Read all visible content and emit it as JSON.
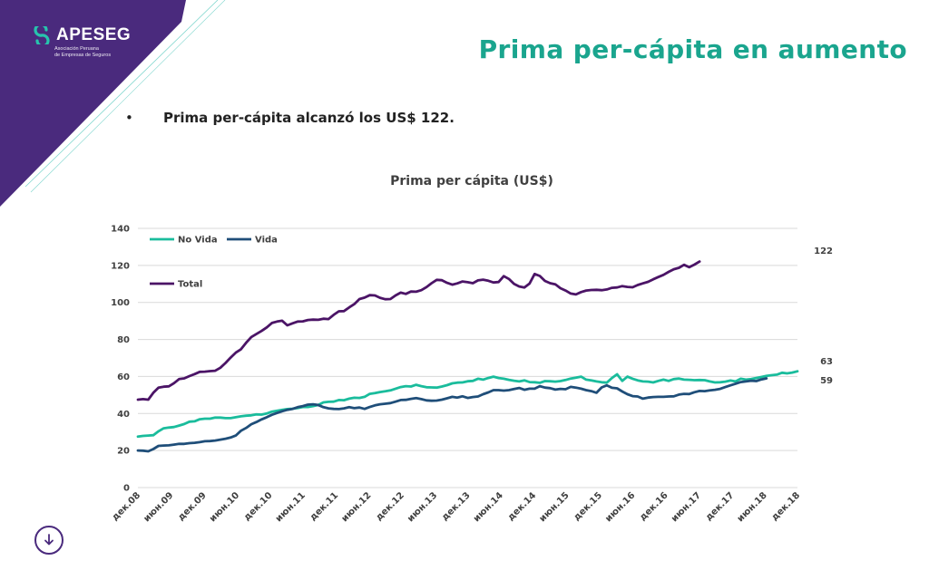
{
  "brand": {
    "name": "APESEG",
    "tagline_1": "Asociación Peruana",
    "tagline_2": "de Empresas de Seguros"
  },
  "slide": {
    "title": "Prima per-cápita en aumento",
    "bullet_symbol": "•",
    "bullet_text": "Prima per-cápita alcanzó los US$ 122."
  },
  "colors": {
    "accent_green": "#1aa58e",
    "purple": "#4b1466",
    "navy": "#1f4e79",
    "no_vida": "#1abc9c",
    "corner_purple": "#4a2a7d"
  },
  "icons": {
    "scroll_down": "arrow-down-circle-icon"
  },
  "chart_data": {
    "type": "line",
    "title": "Prima per cápita (US$)",
    "x_ticks": [
      "дек.08",
      "июн.09",
      "дек.09",
      "июн.10",
      "дек.10",
      "июн.11",
      "дек.11",
      "июн.12",
      "дек.12",
      "июн.13",
      "дек.13",
      "июн.14",
      "дек.14",
      "июн.15",
      "дек.15",
      "июн.16",
      "дек.16",
      "июн.17",
      "дек.17",
      "июн.18",
      "дек.18"
    ],
    "y_ticks": [
      0,
      20,
      40,
      60,
      80,
      100,
      120,
      140
    ],
    "ylim": [
      0,
      140
    ],
    "grid": true,
    "legend_placement": "top-left",
    "series": [
      {
        "name": "No Vida",
        "color": "#1abc9c",
        "values": [
          27.5,
          27.9,
          28.1,
          28.3,
          30.4,
          32.0,
          32.4,
          32.7,
          33.5,
          34.3,
          35.6,
          35.8,
          36.9,
          37.2,
          37.2,
          37.8,
          37.8,
          37.5,
          37.5,
          38.0,
          38.5,
          38.8,
          39.0,
          39.5,
          39.4,
          40.0,
          41.0,
          41.5,
          42.0,
          42.4,
          42.6,
          43.0,
          43.5,
          43.5,
          44.0,
          44.6,
          46.0,
          46.3,
          46.4,
          47.3,
          47.2,
          48.0,
          48.5,
          48.4,
          49.0,
          50.6,
          51.0,
          51.6,
          52.0,
          52.5,
          53.4,
          54.3,
          54.8,
          54.6,
          55.5,
          54.8,
          54.2,
          54.1,
          54.0,
          54.6,
          55.3,
          56.3,
          56.7,
          56.8,
          57.4,
          57.6,
          58.8,
          58.3,
          59.2,
          59.9,
          59.2,
          58.8,
          58.2,
          57.7,
          57.3,
          57.9,
          57.0,
          56.9,
          56.6,
          57.5,
          57.4,
          57.2,
          57.5,
          58.1,
          58.9,
          59.4,
          59.9,
          58.3,
          57.9,
          57.3,
          56.9,
          56.7,
          59.2,
          61.2,
          57.6,
          59.9,
          58.8,
          57.9,
          57.3,
          57.2,
          56.8,
          57.6,
          58.3,
          57.6,
          58.6,
          58.9,
          58.3,
          58.2,
          58.0,
          58.1,
          58.0,
          57.3,
          56.8,
          56.9,
          57.2,
          57.8,
          57.3,
          58.8,
          58.3,
          58.6,
          59.2,
          59.7,
          60.3,
          60.7,
          61.0,
          62.0,
          61.7,
          62.1,
          62.8
        ]
      },
      {
        "name": "Vida",
        "color": "#1f4e79",
        "values": [
          20.0,
          19.9,
          19.6,
          20.8,
          22.5,
          22.7,
          22.8,
          23.2,
          23.6,
          23.6,
          24.0,
          24.2,
          24.5,
          25.0,
          25.1,
          25.4,
          25.9,
          26.4,
          27.0,
          28.1,
          30.7,
          32.2,
          34.2,
          35.4,
          36.8,
          38.0,
          39.3,
          40.3,
          41.2,
          42.0,
          42.5,
          43.4,
          44.0,
          44.8,
          45.0,
          44.6,
          43.4,
          42.8,
          42.5,
          42.4,
          42.8,
          43.4,
          42.9,
          43.2,
          42.5,
          43.5,
          44.4,
          45.0,
          45.3,
          45.6,
          46.4,
          47.3,
          47.4,
          47.9,
          48.3,
          47.8,
          47.1,
          46.9,
          47.0,
          47.5,
          48.2,
          49.0,
          48.6,
          49.3,
          48.4,
          48.9,
          49.2,
          50.4,
          51.4,
          52.6,
          52.6,
          52.4,
          52.6,
          53.2,
          53.8,
          52.8,
          53.4,
          53.4,
          54.8,
          54.0,
          53.7,
          52.9,
          53.3,
          53.1,
          54.4,
          54.0,
          53.4,
          52.6,
          52.1,
          51.2,
          54.1,
          55.2,
          53.9,
          53.6,
          51.9,
          50.4,
          49.4,
          49.2,
          48.0,
          48.6,
          48.9,
          49.0,
          49.0,
          49.2,
          49.3,
          50.2,
          50.6,
          50.5,
          51.5,
          52.2,
          52.1,
          52.5,
          52.8,
          53.3,
          54.3,
          55.2,
          56.1,
          57.0,
          57.3,
          57.7,
          57.5,
          58.4,
          59.0
        ]
      },
      {
        "name": "Total",
        "color": "#4b1466",
        "values": [
          47.5,
          47.8,
          47.5,
          51.2,
          54.0,
          54.5,
          54.7,
          56.4,
          58.6,
          59.0,
          60.2,
          61.3,
          62.5,
          62.6,
          62.9,
          63.1,
          64.7,
          67.3,
          70.2,
          72.9,
          74.7,
          78.2,
          81.3,
          82.9,
          84.6,
          86.5,
          88.9,
          89.7,
          90.1,
          87.6,
          88.7,
          89.7,
          89.8,
          90.5,
          90.7,
          90.6,
          91.2,
          91.0,
          93.3,
          95.2,
          95.3,
          97.3,
          99.1,
          101.8,
          102.6,
          103.9,
          103.8,
          102.5,
          101.7,
          101.8,
          103.8,
          105.3,
          104.6,
          105.9,
          105.8,
          106.6,
          108.3,
          110.4,
          112.2,
          112.0,
          110.6,
          109.6,
          110.3,
          111.3,
          110.9,
          110.4,
          111.9,
          112.3,
          111.7,
          110.8,
          111.0,
          114.2,
          112.7,
          110.0,
          108.6,
          108.1,
          110.2,
          115.4,
          114.3,
          111.6,
          110.4,
          109.8,
          107.7,
          106.4,
          104.8,
          104.3,
          105.6,
          106.4,
          106.7,
          106.8,
          106.6,
          107.0,
          107.9,
          108.1,
          108.8,
          108.4,
          108.2,
          109.4,
          110.3,
          111.1,
          112.5,
          113.7,
          114.9,
          116.5,
          117.9,
          118.7,
          120.3,
          119.0,
          120.4,
          122.1
        ]
      }
    ],
    "end_labels": {
      "Total": "122",
      "No Vida": "63",
      "Vida": "59"
    }
  }
}
